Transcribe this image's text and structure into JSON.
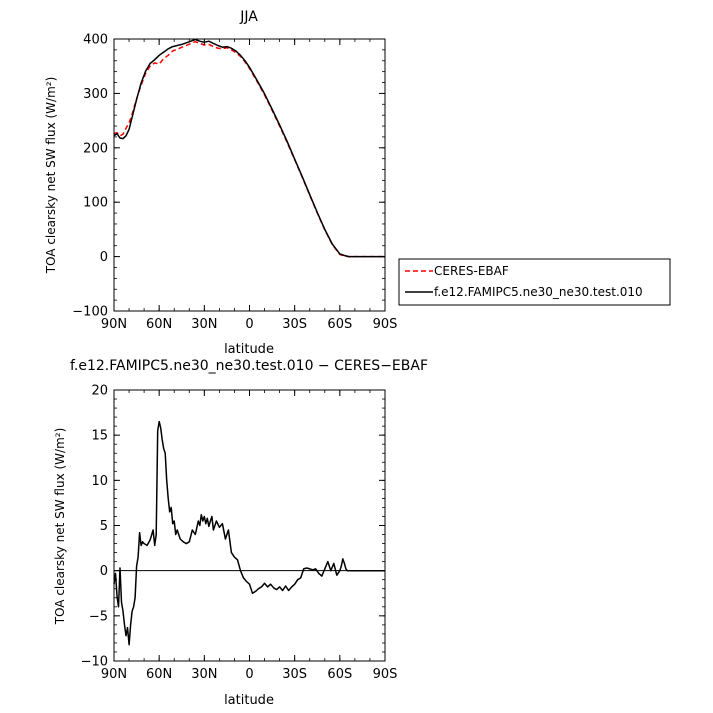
{
  "chart_data": [
    {
      "type": "line",
      "title": "JJA",
      "xlabel": "latitude",
      "ylabel": "TOA clearsky net SW flux (W/m²)",
      "xlim": [
        90,
        -90
      ],
      "ylim": [
        -100,
        400
      ],
      "x_ticks": [
        90,
        60,
        30,
        0,
        -30,
        -60,
        -90
      ],
      "x_tick_labels": [
        "90N",
        "60N",
        "30N",
        "0",
        "30S",
        "60S",
        "90S"
      ],
      "y_ticks": [
        -100,
        0,
        100,
        200,
        300,
        400
      ],
      "y_tick_labels": [
        "−100",
        "0",
        "100",
        "200",
        "300",
        "400"
      ],
      "legend_position": "outside-right",
      "series": [
        {
          "name": "CERES-EBAF",
          "color": "#ff0000",
          "dash": "dashed",
          "x": [
            90,
            88,
            86,
            84,
            82,
            80,
            78,
            75,
            72,
            69,
            66,
            63,
            60,
            57,
            54,
            51,
            48,
            45,
            42,
            39,
            36,
            33,
            30,
            27,
            24,
            21,
            18,
            15,
            12,
            9,
            6,
            3,
            0,
            -5,
            -10,
            -15,
            -20,
            -25,
            -30,
            -35,
            -40,
            -45,
            -50,
            -55,
            -60,
            -63,
            -66,
            -70,
            -75,
            -80,
            -85,
            -90
          ],
          "y": [
            226,
            228,
            222,
            225,
            236,
            246,
            262,
            290,
            315,
            337,
            350,
            356,
            354,
            364,
            370,
            378,
            381,
            385,
            388,
            392,
            395,
            392,
            389,
            390,
            386,
            383,
            382,
            384,
            380,
            375,
            368,
            358,
            346,
            322,
            297,
            269,
            240,
            210,
            178,
            146,
            113,
            80,
            49,
            22,
            4,
            1,
            0,
            0,
            0,
            0,
            0,
            0
          ]
        },
        {
          "name": "f.e12.FAMIPC5.ne30_ne30.test.010",
          "color": "#000000",
          "dash": "solid",
          "x": [
            90,
            88,
            86,
            84,
            82,
            80,
            78,
            75,
            72,
            69,
            66,
            63,
            60,
            57,
            54,
            51,
            48,
            45,
            42,
            39,
            36,
            33,
            30,
            27,
            24,
            21,
            18,
            15,
            12,
            9,
            6,
            3,
            0,
            -5,
            -10,
            -15,
            -20,
            -25,
            -30,
            -35,
            -40,
            -45,
            -50,
            -55,
            -60,
            -63,
            -66,
            -70,
            -75,
            -80,
            -85,
            -90
          ],
          "y": [
            222,
            226,
            218,
            217,
            222,
            234,
            256,
            289,
            319,
            341,
            355,
            362,
            370,
            376,
            382,
            386,
            388,
            390,
            393,
            396,
            399,
            396,
            394,
            396,
            392,
            388,
            385,
            386,
            383,
            378,
            370,
            360,
            348,
            324,
            299,
            271,
            242,
            212,
            179,
            147,
            114,
            81,
            50,
            23,
            5,
            2,
            0,
            0,
            0,
            0,
            0,
            0
          ]
        }
      ]
    },
    {
      "type": "line",
      "title": "f.e12.FAMIPC5.ne30_ne30.test.010 − CERES−EBAF",
      "xlabel": "latitude",
      "ylabel": "TOA clearsky net SW flux (W/m²)",
      "xlim": [
        90,
        -90
      ],
      "ylim": [
        -10,
        20
      ],
      "x_ticks": [
        90,
        60,
        30,
        0,
        -30,
        -60,
        -90
      ],
      "x_tick_labels": [
        "90N",
        "60N",
        "30N",
        "0",
        "30S",
        "60S",
        "90S"
      ],
      "y_ticks": [
        -10,
        -5,
        0,
        5,
        10,
        15,
        20
      ],
      "y_tick_labels": [
        "−10",
        "−5",
        "0",
        "5",
        "10",
        "15",
        "20"
      ],
      "series": [
        {
          "name": "",
          "color": "#000000",
          "dash": "solid",
          "x": [
            90,
            89,
            88,
            87,
            86,
            85,
            84,
            83,
            82,
            81,
            80,
            79,
            78,
            77,
            76,
            75,
            74,
            73,
            72,
            71,
            70,
            68,
            66,
            64,
            63,
            62,
            61,
            60,
            59,
            58,
            57,
            56,
            55,
            54,
            53,
            52,
            51,
            50,
            49,
            48,
            46,
            44,
            42,
            40,
            38,
            36,
            34,
            33,
            32,
            31,
            30,
            29,
            28,
            27,
            26,
            25,
            24,
            22,
            20,
            18,
            16,
            14,
            12,
            10,
            8,
            6,
            4,
            2,
            0,
            -2,
            -4,
            -6,
            -8,
            -10,
            -12,
            -14,
            -16,
            -18,
            -20,
            -22,
            -24,
            -26,
            -28,
            -30,
            -32,
            -34,
            -36,
            -38,
            -40,
            -42,
            -44,
            -46,
            -48,
            -50,
            -52,
            -54,
            -56,
            -58,
            -60,
            -61,
            -62,
            -63,
            -64,
            -65,
            -66,
            -68,
            -70,
            -72,
            -74,
            -76,
            -78,
            -80,
            -82,
            -84,
            -86,
            -88,
            -90
          ],
          "y": [
            -1.5,
            -0.3,
            -2.8,
            -4.0,
            0.3,
            -3.5,
            -4.5,
            -6.0,
            -7.2,
            -6.3,
            -8.2,
            -6.0,
            -4.5,
            -4.0,
            -3.0,
            0.5,
            1.5,
            4.2,
            2.8,
            3.2,
            3.0,
            2.8,
            3.4,
            4.5,
            2.8,
            4.0,
            15.5,
            16.5,
            15.8,
            14.5,
            13.5,
            13.0,
            10.0,
            8.0,
            6.5,
            7.0,
            5.2,
            5.5,
            4.0,
            4.5,
            3.5,
            3.2,
            3.0,
            3.2,
            4.5,
            4.0,
            5.5,
            5.0,
            6.2,
            5.5,
            6.0,
            5.2,
            5.8,
            4.9,
            5.5,
            6.0,
            4.5,
            5.5,
            4.8,
            5.2,
            3.5,
            4.5,
            2.0,
            1.5,
            1.2,
            0.0,
            -0.8,
            -1.2,
            -1.5,
            -2.5,
            -2.3,
            -2.0,
            -1.8,
            -1.4,
            -1.8,
            -1.5,
            -1.9,
            -2.1,
            -1.8,
            -2.2,
            -1.7,
            -2.2,
            -1.8,
            -1.5,
            -1.0,
            -0.8,
            0.2,
            0.3,
            0.2,
            0.1,
            0.2,
            -0.3,
            -0.6,
            0.2,
            1.0,
            0.0,
            0.8,
            -0.5,
            0.0,
            0.5,
            1.3,
            0.8,
            0.2,
            0.0,
            0.0,
            0.0,
            0.0,
            0.0,
            0.0,
            0.0,
            0.0,
            0.0,
            0.0,
            0.0,
            0.0,
            0.0,
            0.0
          ]
        }
      ]
    }
  ]
}
